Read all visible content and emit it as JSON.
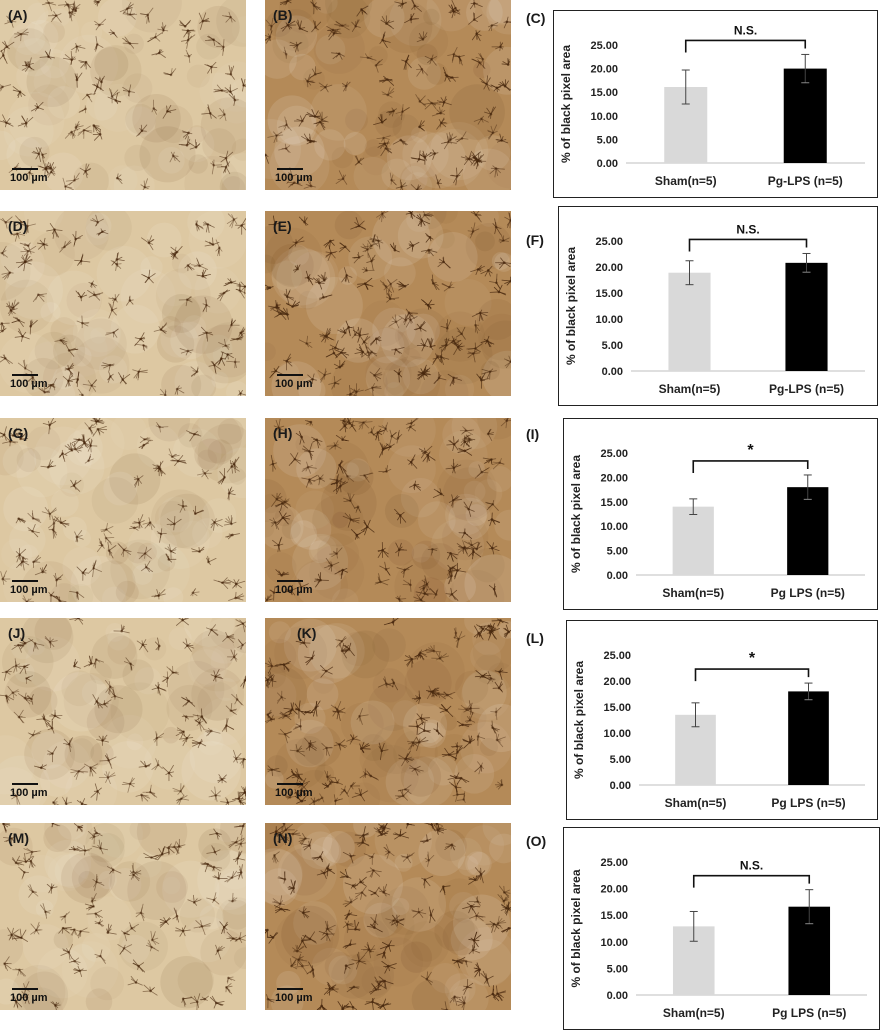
{
  "scale_bar_label": "100 µm",
  "colors": {
    "sham": "#d9d9d9",
    "pg_lps": "#000000",
    "light_tissue": "#ddc8a2",
    "dark_tissue": "#b48a58",
    "cell_stain": "#4a2a10"
  },
  "panels": [
    {
      "label": "(A)",
      "tone": "light",
      "gain": 0.55
    },
    {
      "label": "(B)",
      "tone": "dark",
      "gain": 0.8
    },
    {
      "label": "(D)",
      "tone": "light",
      "gain": 0.6
    },
    {
      "label": "(E)",
      "tone": "dark",
      "gain": 1.0
    },
    {
      "label": "(G)",
      "tone": "light",
      "gain": 0.45
    },
    {
      "label": "(H)",
      "tone": "dark",
      "gain": 0.85
    },
    {
      "label": "(J)",
      "tone": "light",
      "gain": 0.5
    },
    {
      "label": "(K)",
      "tone": "dark",
      "gain": 0.95
    },
    {
      "label": "(M)",
      "tone": "light",
      "gain": 0.55
    },
    {
      "label": "(N)",
      "tone": "dark",
      "gain": 1.0
    }
  ],
  "chart_data": [
    {
      "panel": "(C)",
      "type": "bar",
      "ylabel": "% of black pixel area",
      "categories": [
        "Sham(n=5)",
        "Pg-LPS (n=5)"
      ],
      "values": [
        16.1,
        20.0
      ],
      "errors": [
        3.6,
        3.0
      ],
      "ylim": [
        0,
        25
      ],
      "ticks": [
        "0.00",
        "5.00",
        "10.00",
        "15.00",
        "20.00",
        "25.00"
      ],
      "significance": "N.S."
    },
    {
      "panel": "(F)",
      "type": "bar",
      "ylabel": "% of black pixel area",
      "categories": [
        "Sham(n=5)",
        "Pg-LPS (n=5)"
      ],
      "values": [
        18.9,
        20.8
      ],
      "errors": [
        2.3,
        1.8
      ],
      "ylim": [
        0,
        25
      ],
      "ticks": [
        "0.00",
        "5.00",
        "10.00",
        "15.00",
        "20.00",
        "25.00"
      ],
      "significance": "N.S."
    },
    {
      "panel": "(I)",
      "type": "bar",
      "ylabel": "% of black pixel area",
      "categories": [
        "Sham(n=5)",
        "Pg LPS (n=5)"
      ],
      "values": [
        14.0,
        18.0
      ],
      "errors": [
        1.6,
        2.5
      ],
      "ylim": [
        0,
        25
      ],
      "ticks": [
        "0.00",
        "5.00",
        "10.00",
        "15.00",
        "20.00",
        "25.00"
      ],
      "significance": "*"
    },
    {
      "panel": "(L)",
      "type": "bar",
      "ylabel": "% of black pixel area",
      "categories": [
        "Sham(n=5)",
        "Pg LPS (n=5)"
      ],
      "values": [
        13.5,
        18.0
      ],
      "errors": [
        2.3,
        1.6
      ],
      "ylim": [
        0,
        25
      ],
      "ticks": [
        "0.00",
        "5.00",
        "10.00",
        "15.00",
        "20.00",
        "25.00"
      ],
      "significance": "*"
    },
    {
      "panel": "(O)",
      "type": "bar",
      "ylabel": "% of black pixel area",
      "categories": [
        "Sham(n=5)",
        "Pg LPS (n=5)"
      ],
      "values": [
        12.9,
        16.6
      ],
      "errors": [
        2.8,
        3.2
      ],
      "ylim": [
        0,
        25
      ],
      "ticks": [
        "0.00",
        "5.00",
        "10.00",
        "15.00",
        "20.00",
        "25.00"
      ],
      "significance": "N.S."
    }
  ]
}
